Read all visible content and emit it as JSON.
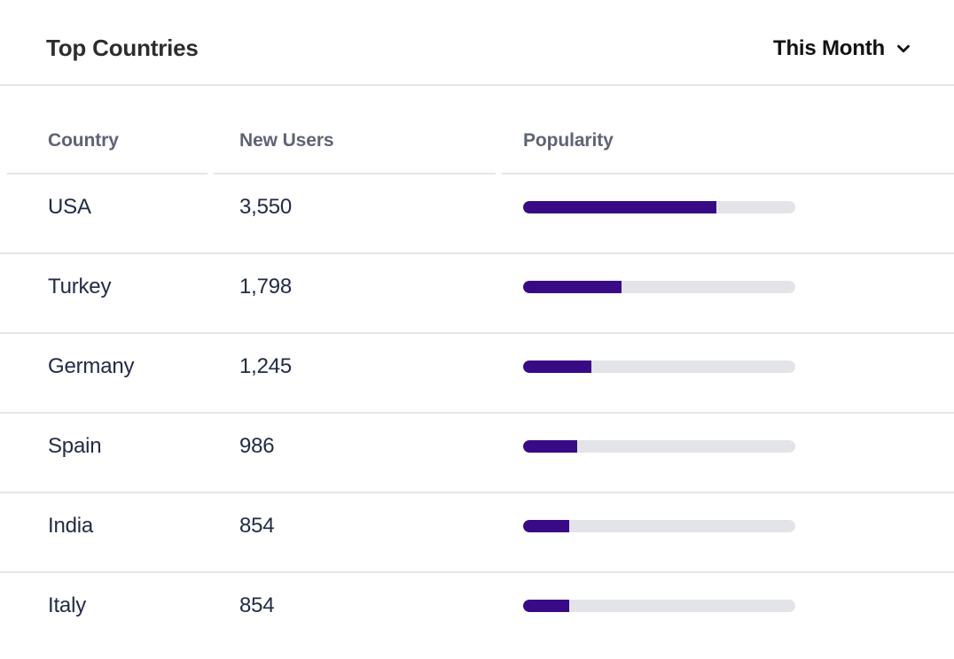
{
  "card": {
    "title": "Top Countries",
    "period_selector": {
      "label": "This Month",
      "icon": "chevron-down-icon"
    }
  },
  "table": {
    "columns": [
      "Country",
      "New Users",
      "Popularity"
    ],
    "rows": [
      {
        "country": "USA",
        "new_users": "3,550",
        "popularity_pct": 71
      },
      {
        "country": "Turkey",
        "new_users": "1,798",
        "popularity_pct": 36
      },
      {
        "country": "Germany",
        "new_users": "1,245",
        "popularity_pct": 25
      },
      {
        "country": "Spain",
        "new_users": "986",
        "popularity_pct": 20
      },
      {
        "country": "India",
        "new_users": "854",
        "popularity_pct": 17
      },
      {
        "country": "Italy",
        "new_users": "854",
        "popularity_pct": 17
      }
    ]
  },
  "colors": {
    "bar_fill": "#390a85",
    "bar_track": "#e3e4e8",
    "divider": "#e4e7e3",
    "header_text": "#5f6374",
    "body_text": "#222b45",
    "title_text": "#2d2d2d",
    "period_text": "#111111"
  },
  "chart_data": {
    "type": "table",
    "title": "Top Countries",
    "columns": [
      "Country",
      "New Users",
      "Popularity"
    ],
    "rows": [
      [
        "USA",
        3550,
        0.71
      ],
      [
        "Turkey",
        1798,
        0.36
      ],
      [
        "Germany",
        1245,
        0.25
      ],
      [
        "Spain",
        986,
        0.2
      ],
      [
        "India",
        854,
        0.17
      ],
      [
        "Italy",
        854,
        0.17
      ]
    ],
    "notes": "Popularity shown as horizontal progress bar, fill fraction of track"
  }
}
